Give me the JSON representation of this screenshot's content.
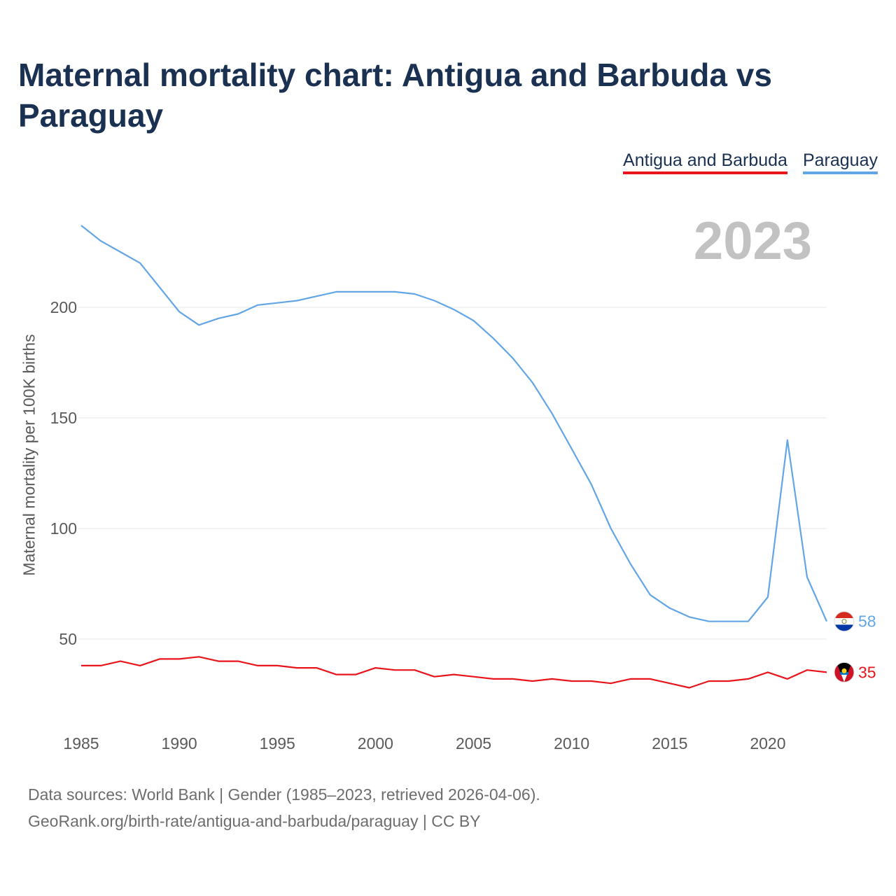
{
  "header": {
    "title": "Maternal mortality chart: Antigua and Barbuda vs Paraguay"
  },
  "watermark_year": "2023",
  "footer": {
    "source_line": "Data sources: World Bank | Gender (1985–2023, retrieved 2026-04-06).",
    "url_line": "GeoRank.org/birth-rate/antigua-and-barbuda/paraguay | CC BY"
  },
  "chart_data": {
    "type": "line",
    "title": "Maternal mortality chart: Antigua and Barbuda vs Paraguay",
    "xlabel": "",
    "ylabel": "Maternal mortality per 100K births",
    "xlim": [
      1985,
      2023
    ],
    "ylim": [
      20,
      240
    ],
    "grid": true,
    "legend_position": "top-right",
    "x_ticks": [
      1985,
      1990,
      1995,
      2000,
      2005,
      2010,
      2015,
      2020
    ],
    "y_ticks": [
      50,
      100,
      150,
      200
    ],
    "x": [
      1985,
      1986,
      1987,
      1988,
      1989,
      1990,
      1991,
      1992,
      1993,
      1994,
      1995,
      1996,
      1997,
      1998,
      1999,
      2000,
      2001,
      2002,
      2003,
      2004,
      2005,
      2006,
      2007,
      2008,
      2009,
      2010,
      2011,
      2012,
      2013,
      2014,
      2015,
      2016,
      2017,
      2018,
      2019,
      2020,
      2021,
      2022,
      2023
    ],
    "series": [
      {
        "name": "Antigua and Barbuda",
        "color": "#e8161c",
        "flag": "antigua-and-barbuda-flag-icon",
        "end_label": "35",
        "values": [
          38,
          38,
          40,
          38,
          41,
          41,
          42,
          40,
          40,
          38,
          38,
          37,
          37,
          34,
          34,
          37,
          36,
          36,
          33,
          34,
          33,
          32,
          32,
          31,
          32,
          31,
          31,
          30,
          32,
          32,
          30,
          28,
          31,
          31,
          32,
          35,
          32,
          36,
          35
        ]
      },
      {
        "name": "Paraguay",
        "color": "#63a6e6",
        "flag": "paraguay-flag-icon",
        "end_label": "58",
        "values": [
          237,
          230,
          225,
          220,
          209,
          198,
          192,
          195,
          197,
          201,
          202,
          203,
          205,
          207,
          207,
          207,
          207,
          206,
          203,
          199,
          194,
          186,
          177,
          166,
          152,
          136,
          120,
          100,
          84,
          70,
          64,
          60,
          58,
          58,
          58,
          69,
          140,
          78,
          58
        ]
      }
    ]
  }
}
